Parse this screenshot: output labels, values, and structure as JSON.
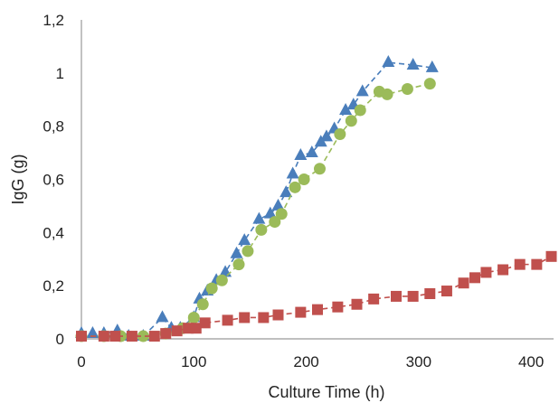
{
  "chart_data": {
    "type": "scatter",
    "xlabel": "Culture Time (h)",
    "ylabel": "IgG (g)",
    "xlim": [
      0,
      420
    ],
    "ylim": [
      0,
      1.2
    ],
    "x_ticks": [
      "0",
      "100",
      "200",
      "300",
      "400"
    ],
    "y_ticks": [
      "0",
      "0,2",
      "0,4",
      "0,6",
      "0,8",
      "1",
      "1,2"
    ],
    "grid": false,
    "legend": false,
    "series": [
      {
        "marker": "triangle",
        "color": "#4a7ebb",
        "line_style": "dashed",
        "points": [
          [
            0,
            0.02
          ],
          [
            10,
            0.02
          ],
          [
            20,
            0.02
          ],
          [
            32,
            0.03
          ],
          [
            42,
            0.01
          ],
          [
            55,
            0.01
          ],
          [
            72,
            0.08
          ],
          [
            80,
            0.04
          ],
          [
            88,
            0.04
          ],
          [
            100,
            0.08
          ],
          [
            105,
            0.15
          ],
          [
            112,
            0.18
          ],
          [
            120,
            0.22
          ],
          [
            128,
            0.25
          ],
          [
            138,
            0.32
          ],
          [
            145,
            0.37
          ],
          [
            158,
            0.45
          ],
          [
            168,
            0.47
          ],
          [
            175,
            0.5
          ],
          [
            182,
            0.55
          ],
          [
            188,
            0.62
          ],
          [
            195,
            0.69
          ],
          [
            205,
            0.7
          ],
          [
            213,
            0.74
          ],
          [
            218,
            0.76
          ],
          [
            225,
            0.79
          ],
          [
            235,
            0.86
          ],
          [
            242,
            0.88
          ],
          [
            250,
            0.93
          ],
          [
            273,
            1.04
          ],
          [
            295,
            1.03
          ],
          [
            312,
            1.02
          ]
        ]
      },
      {
        "marker": "circle",
        "color": "#9bbb59",
        "line_style": "dashed",
        "points": [
          [
            0,
            0.01
          ],
          [
            20,
            0.01
          ],
          [
            35,
            0.01
          ],
          [
            55,
            0.01
          ],
          [
            75,
            0.02
          ],
          [
            90,
            0.04
          ],
          [
            100,
            0.08
          ],
          [
            108,
            0.13
          ],
          [
            116,
            0.19
          ],
          [
            125,
            0.22
          ],
          [
            140,
            0.28
          ],
          [
            148,
            0.33
          ],
          [
            160,
            0.41
          ],
          [
            172,
            0.44
          ],
          [
            178,
            0.47
          ],
          [
            190,
            0.57
          ],
          [
            198,
            0.6
          ],
          [
            212,
            0.64
          ],
          [
            230,
            0.77
          ],
          [
            240,
            0.82
          ],
          [
            248,
            0.86
          ],
          [
            265,
            0.93
          ],
          [
            272,
            0.92
          ],
          [
            290,
            0.94
          ],
          [
            310,
            0.96
          ]
        ]
      },
      {
        "marker": "square",
        "color": "#c0504d",
        "line_style": "dashed",
        "points": [
          [
            0,
            0.01
          ],
          [
            20,
            0.01
          ],
          [
            30,
            0.01
          ],
          [
            45,
            0.01
          ],
          [
            65,
            0.01
          ],
          [
            75,
            0.02
          ],
          [
            85,
            0.03
          ],
          [
            95,
            0.04
          ],
          [
            102,
            0.04
          ],
          [
            110,
            0.06
          ],
          [
            130,
            0.07
          ],
          [
            145,
            0.08
          ],
          [
            162,
            0.08
          ],
          [
            175,
            0.09
          ],
          [
            195,
            0.1
          ],
          [
            210,
            0.11
          ],
          [
            228,
            0.12
          ],
          [
            245,
            0.13
          ],
          [
            260,
            0.15
          ],
          [
            280,
            0.16
          ],
          [
            295,
            0.16
          ],
          [
            310,
            0.17
          ],
          [
            325,
            0.18
          ],
          [
            340,
            0.21
          ],
          [
            350,
            0.23
          ],
          [
            360,
            0.25
          ],
          [
            375,
            0.26
          ],
          [
            390,
            0.28
          ],
          [
            405,
            0.28
          ],
          [
            418,
            0.31
          ]
        ]
      }
    ]
  }
}
